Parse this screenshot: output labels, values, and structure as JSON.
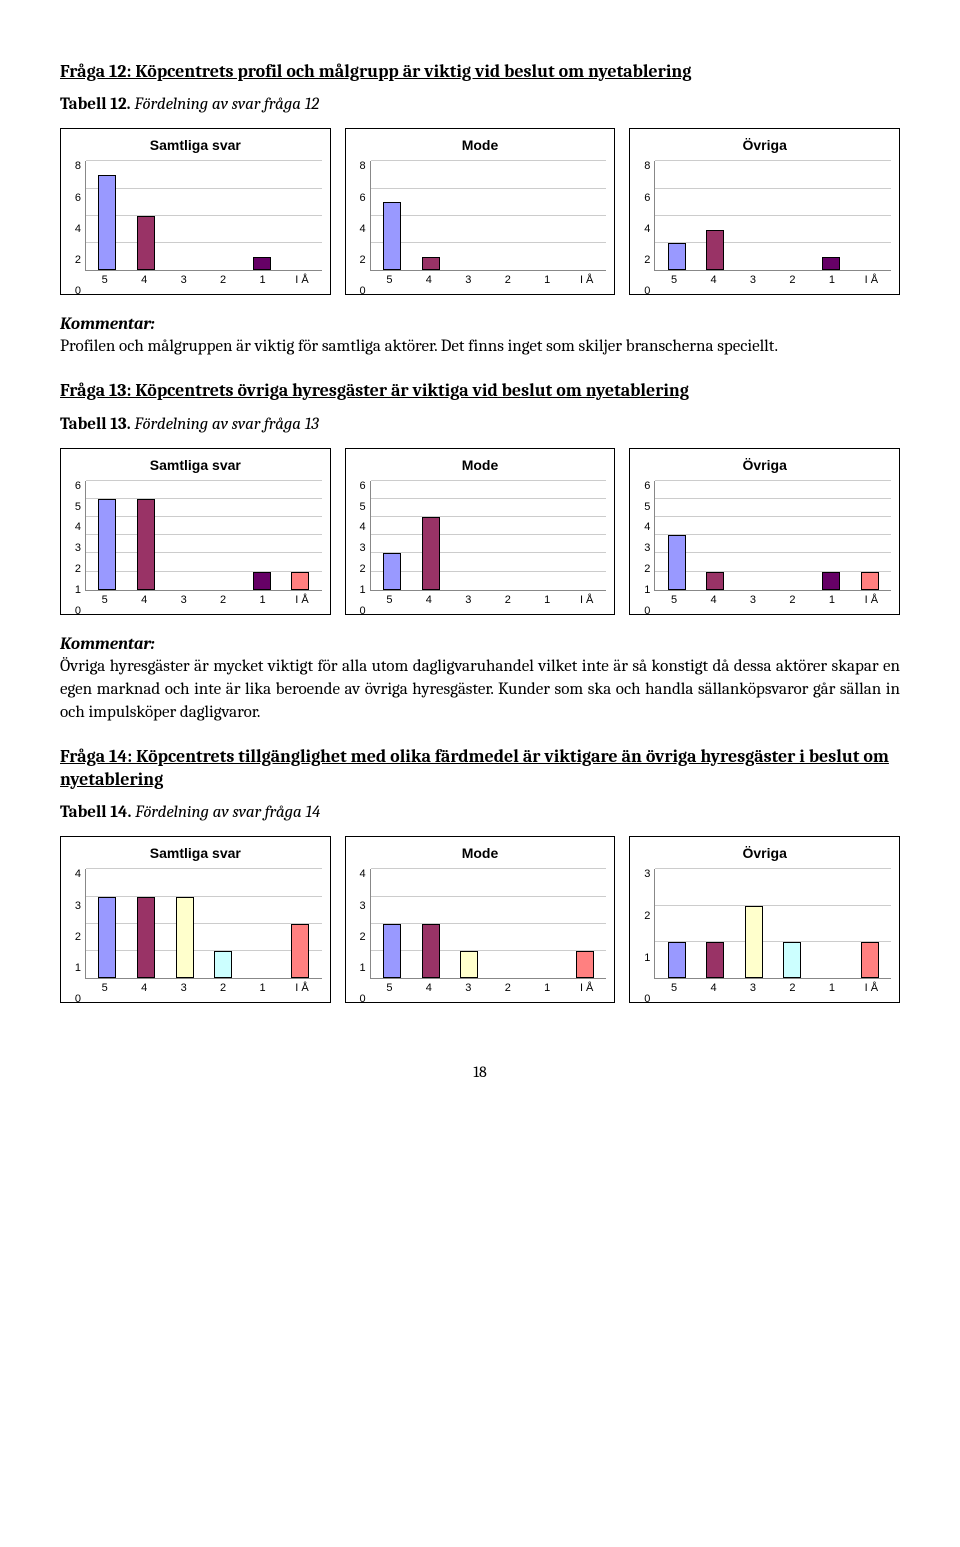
{
  "bar_colors": [
    "#9999ff",
    "#993366",
    "#ffffcc",
    "#ccffff",
    "#660066",
    "#ff8080"
  ],
  "q12": {
    "heading": "Fråga 12: Köpcentrets profil och målgrupp är viktig vid beslut om nyetablering",
    "tabell_bold": "Tabell 12.",
    "tabell_italic": " Fördelning av svar fråga 12",
    "charts": [
      {
        "title": "Samtliga svar",
        "ymax": 8,
        "ystep": 2,
        "values": [
          7,
          4,
          0,
          0,
          1,
          0
        ],
        "labels": [
          "5",
          "4",
          "3",
          "2",
          "1",
          "I Å"
        ]
      },
      {
        "title": "Mode",
        "ymax": 8,
        "ystep": 2,
        "values": [
          5,
          1,
          0,
          0,
          0,
          0
        ],
        "labels": [
          "5",
          "4",
          "3",
          "2",
          "1",
          "I Å"
        ]
      },
      {
        "title": "Övriga",
        "ymax": 8,
        "ystep": 2,
        "values": [
          2,
          3,
          0,
          0,
          1,
          0
        ],
        "labels": [
          "5",
          "4",
          "3",
          "2",
          "1",
          "I Å"
        ]
      }
    ],
    "kommentar_label": "Kommentar:",
    "kommentar_body": "Profilen och målgruppen är viktig för samtliga aktörer. Det finns inget som skiljer branscherna speciellt."
  },
  "q13": {
    "heading": "Fråga 13: Köpcentrets övriga hyresgäster är viktiga vid beslut om nyetablering",
    "tabell_bold": "Tabell 13.",
    "tabell_italic": " Fördelning av svar fråga 13",
    "charts": [
      {
        "title": "Samtliga svar",
        "ymax": 6,
        "ystep": 1,
        "values": [
          5,
          5,
          0,
          0,
          1,
          1
        ],
        "labels": [
          "5",
          "4",
          "3",
          "2",
          "1",
          "I Å"
        ]
      },
      {
        "title": "Mode",
        "ymax": 6,
        "ystep": 1,
        "values": [
          2,
          4,
          0,
          0,
          0,
          0
        ],
        "labels": [
          "5",
          "4",
          "3",
          "2",
          "1",
          "I Å"
        ]
      },
      {
        "title": "Övriga",
        "ymax": 6,
        "ystep": 1,
        "values": [
          3,
          1,
          0,
          0,
          1,
          1
        ],
        "labels": [
          "5",
          "4",
          "3",
          "2",
          "1",
          "I Å"
        ]
      }
    ],
    "kommentar_label": "Kommentar:",
    "kommentar_body": "Övriga hyresgäster är mycket viktigt för alla utom dagligvaruhandel vilket inte är så konstigt då dessa aktörer skapar en egen marknad och inte är lika beroende av övriga hyresgäster. Kunder som ska och handla sällanköpsvaror går sällan in och impulsköper dagligvaror."
  },
  "q14": {
    "heading": "Fråga 14: Köpcentrets tillgänglighet med olika färdmedel är viktigare än övriga hyresgäster i beslut om nyetablering",
    "tabell_bold": "Tabell 14.",
    "tabell_italic": " Fördelning av svar fråga 14",
    "charts": [
      {
        "title": "Samtliga svar",
        "ymax": 4,
        "ystep": 1,
        "values": [
          3,
          3,
          3,
          1,
          0,
          2
        ],
        "labels": [
          "5",
          "4",
          "3",
          "2",
          "1",
          "I Å"
        ]
      },
      {
        "title": "Mode",
        "ymax": 4,
        "ystep": 1,
        "values": [
          2,
          2,
          1,
          0,
          0,
          1
        ],
        "labels": [
          "5",
          "4",
          "3",
          "2",
          "1",
          "I Å"
        ]
      },
      {
        "title": "Övriga",
        "ymax": 3,
        "ystep": 1,
        "values": [
          1,
          1,
          2,
          1,
          0,
          1
        ],
        "labels": [
          "5",
          "4",
          "3",
          "2",
          "1",
          "I Å"
        ]
      }
    ]
  },
  "page_number": "18"
}
